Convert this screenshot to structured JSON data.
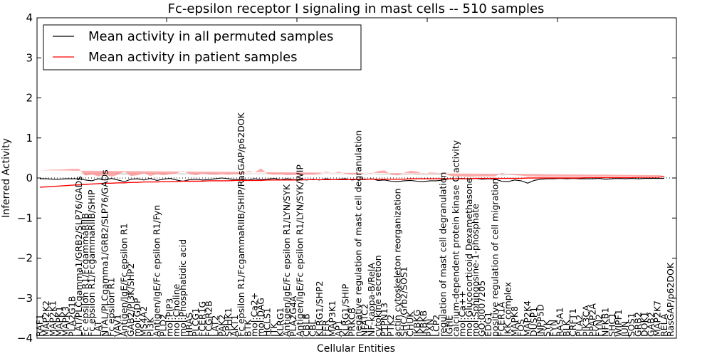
{
  "chart_data": {
    "type": "line",
    "title": "Fc-epsilon receptor I signaling in mast cells -- 510 samples",
    "xlabel": "Cellular Entities",
    "ylabel": "Inferred Activity",
    "ylim": [
      -4,
      4
    ],
    "yticks": [
      -4,
      -3,
      -2,
      -1,
      0,
      1,
      2,
      3,
      4
    ],
    "ytick_labels": [
      "−4",
      "−3",
      "−2",
      "−1",
      "0",
      "1",
      "2",
      "3",
      "4"
    ],
    "grid": false,
    "legend_position": "top-left",
    "legend": [
      {
        "label": "Mean activity in all permuted samples",
        "color": "#000000"
      },
      {
        "label": "Mean activity in patient samples",
        "color": "#ff0000"
      }
    ],
    "categories": [
      "RAF1",
      "MAP2K2",
      "MAP2K1",
      "MAPK1",
      "MAPK3",
      "PLA2G1B",
      "LAT/PLCgamma1/GRB2/SLP76/GADs",
      "Fc epsilon R1/FcgammaRIIB",
      "Fc epsilon R1/FcgammaRIIB/SHIP",
      "LAT",
      "NTAL/PLCgamma1/GRB2/SLP76/GADs",
      "Fc epsilon R1",
      "VAV1",
      "Antigen/IgE/Fc epsilon R1",
      "GAB2/PI3K/SHP2",
      "mol:GDP",
      "MS4A2",
      "PI3K",
      "Antigen/IgE/Fc epsilon R1/Fyn",
      "PLD2",
      "mol:PIP3",
      "mol:Choline",
      "mol:Phosphatidic acid",
      "HRAS",
      "PLCG1",
      "FCER1G",
      "FCGR2B",
      "LAT2",
      "PAK2",
      "SPHK1",
      "AKT1",
      "Fc epsilon R1/FcgammaRIIB/SHIP/RasGAP/p62DOK",
      "BTK",
      "mol:Ca2+",
      "mol:DAG",
      "HCLS1",
      "ITK",
      "KLRG1",
      "Antigen/IgE/Fc epsilon R1/LYN/SYK",
      "PLA2G4A",
      "Antigen/IgE/Fc epsilon R1/LYN/SYK/WIP",
      "CBLB",
      "CBL",
      "KLRG1/SHP2",
      "FER",
      "MAP3K1",
      "AP1",
      "KLRG1/SHIP",
      "PRKCB",
      "negative regulation of mast cell degranulation",
      "NFATC2",
      "NF-kappa-B/RelA",
      "cytokine secretion",
      "PTPN13",
      "PTK2",
      "actin cytoskeleton reorganization",
      "SHC/Grb2/SOS1",
      "CHUK",
      "IKBKG",
      "IKBKB",
      "PXN",
      "LCP2",
      "regulation of mast cell degranulation",
      "IGHE",
      "calcium-dependent protein kinase C activity",
      "mol:Ca++",
      "mol:Glucocorticoid Dexamethasone",
      "mol:Sphingosine-1-phosphate",
      "GO:0007205",
      "EDG1",
      "positive regulation of cell migration",
      "FCER1A",
      "IKK complex",
      "MAPK8",
      "FOS",
      "MAP2K4",
      "DUSP1",
      "INPP5D",
      "SYK",
      "FYN",
      "RASA1",
      "BLK",
      "CRFT1",
      "PLA2",
      "PIK3CA",
      "PPAP2A",
      "FYN2",
      "NFKB1",
      "SHC1",
      "WIPF1",
      "JUN",
      "SOS1",
      "GRB2",
      "DOK1",
      "GAB2",
      "MAP2K7",
      "RELA",
      "RasGAP/p62DOK"
    ],
    "series": [
      {
        "name": "Mean activity in all permuted samples",
        "color": "#000000",
        "style": "solid",
        "values": [
          -0.02,
          -0.02,
          -0.03,
          -0.03,
          -0.02,
          -0.02,
          -0.02,
          -0.05,
          -0.07,
          -0.02,
          -0.05,
          -0.01,
          -0.05,
          -0.09,
          -0.03,
          -0.02,
          -0.05,
          -0.01,
          -0.06,
          -0.03,
          -0.01,
          -0.05,
          -0.08,
          -0.04,
          -0.03,
          -0.05,
          -0.04,
          -0.02,
          0.0,
          -0.02,
          -0.04,
          -0.03,
          -0.05,
          -0.02,
          -0.04,
          -0.03,
          -0.01,
          -0.04,
          -0.02,
          -0.04,
          -0.03,
          -0.05,
          -0.03,
          -0.05,
          -0.02,
          -0.04,
          -0.03,
          -0.02,
          -0.05,
          -0.03,
          -0.04,
          -0.02,
          -0.06,
          -0.05,
          -0.08,
          -0.09,
          -0.07,
          -0.06,
          -0.08,
          -0.09,
          -0.07,
          -0.07,
          -0.05,
          -0.02,
          -0.02,
          -0.01,
          -0.03,
          -0.01,
          -0.03,
          -0.02,
          -0.03,
          -0.08,
          -0.09,
          -0.05,
          -0.07,
          -0.13,
          -0.06,
          -0.03,
          -0.02,
          -0.02,
          -0.01,
          -0.02,
          -0.01,
          -0.02,
          -0.02,
          -0.02,
          -0.01,
          -0.03,
          -0.02,
          -0.01,
          -0.02,
          -0.01,
          -0.02,
          -0.01,
          -0.01,
          -0.01,
          -0.01
        ]
      },
      {
        "name": "Mean activity in patient samples",
        "color": "#ff0000",
        "style": "solid",
        "values": [
          -0.23,
          -0.22,
          -0.21,
          -0.2,
          -0.19,
          -0.18,
          -0.17,
          -0.16,
          -0.15,
          -0.14,
          -0.13,
          -0.13,
          -0.12,
          -0.12,
          -0.11,
          -0.11,
          -0.1,
          -0.1,
          -0.1,
          -0.09,
          -0.09,
          -0.09,
          -0.08,
          -0.08,
          -0.08,
          -0.08,
          -0.07,
          -0.07,
          -0.07,
          -0.07,
          -0.06,
          -0.06,
          -0.06,
          -0.06,
          -0.06,
          -0.05,
          -0.05,
          -0.05,
          -0.05,
          -0.05,
          -0.05,
          -0.04,
          -0.04,
          -0.04,
          -0.04,
          -0.04,
          -0.04,
          -0.04,
          -0.03,
          -0.03,
          -0.03,
          -0.03,
          -0.03,
          -0.03,
          -0.03,
          -0.03,
          -0.03,
          -0.02,
          -0.02,
          -0.02,
          -0.02,
          -0.02,
          -0.02,
          -0.02,
          -0.02,
          -0.02,
          -0.02,
          -0.01,
          -0.01,
          -0.01,
          -0.01,
          -0.01,
          -0.01,
          -0.01,
          -0.01,
          0.0,
          0.0,
          0.0,
          0.0,
          0.0,
          0.0,
          0.0,
          0.0,
          0.0,
          0.01,
          0.01,
          0.01,
          0.01,
          0.01,
          0.01,
          0.01,
          0.01,
          0.02,
          0.02,
          0.02,
          0.02,
          0.04
        ]
      }
    ],
    "bands": [
      {
        "name": "Permuted samples spread",
        "color": "#c8c8c8",
        "halfwidth": [
          0.15,
          0.15,
          0.15,
          0.15,
          0.15,
          0.15,
          0.15,
          0.12,
          0.15,
          0.12,
          0.15,
          0.12,
          0.14,
          0.16,
          0.12,
          0.12,
          0.14,
          0.12,
          0.14,
          0.12,
          0.13,
          0.14,
          0.16,
          0.13,
          0.12,
          0.14,
          0.12,
          0.12,
          0.13,
          0.12,
          0.13,
          0.12,
          0.14,
          0.12,
          0.13,
          0.12,
          0.12,
          0.13,
          0.12,
          0.13,
          0.12,
          0.13,
          0.12,
          0.13,
          0.12,
          0.13,
          0.12,
          0.12,
          0.13,
          0.12,
          0.12,
          0.12,
          0.14,
          0.13,
          0.15,
          0.16,
          0.14,
          0.14,
          0.15,
          0.16,
          0.14,
          0.14,
          0.13,
          0.12,
          0.12,
          0.12,
          0.12,
          0.12,
          0.12,
          0.12,
          0.12,
          0.14,
          0.16,
          0.13,
          0.15,
          0.22,
          0.14,
          0.12,
          0.12,
          0.12,
          0.11,
          0.12,
          0.11,
          0.12,
          0.12,
          0.12,
          0.11,
          0.12,
          0.12,
          0.11,
          0.12,
          0.11,
          0.12,
          0.11,
          0.11,
          0.11,
          0.11
        ]
      },
      {
        "name": "Patient samples spread",
        "color": "#ff6666",
        "halfwidth": [
          0.42,
          0.42,
          0.42,
          0.41,
          0.41,
          0.41,
          0.4,
          0.22,
          0.24,
          0.18,
          0.22,
          0.16,
          0.2,
          0.28,
          0.16,
          0.18,
          0.22,
          0.15,
          0.2,
          0.16,
          0.18,
          0.2,
          0.26,
          0.18,
          0.15,
          0.19,
          0.16,
          0.15,
          0.16,
          0.15,
          0.16,
          0.14,
          0.24,
          0.2,
          0.3,
          0.15,
          0.13,
          0.14,
          0.12,
          0.13,
          0.12,
          0.13,
          0.12,
          0.15,
          0.2,
          0.16,
          0.2,
          0.14,
          0.12,
          0.12,
          0.16,
          0.14,
          0.2,
          0.22,
          0.12,
          0.1,
          0.16,
          0.2,
          0.18,
          0.12,
          0.16,
          0.15,
          0.14,
          0.08,
          0.06,
          0.06,
          0.05,
          0.05,
          0.05,
          0.05,
          0.05,
          0.14,
          0.1,
          0.08,
          0.07,
          0.04,
          0.04,
          0.03,
          0.03,
          0.03,
          0.03,
          0.03,
          0.03,
          0.03,
          0.03,
          0.03,
          0.03,
          0.03,
          0.03,
          0.03,
          0.03,
          0.03,
          0.03,
          0.03,
          0.03,
          0.03,
          0.03
        ]
      }
    ],
    "reference_line": {
      "y": 0,
      "style": "dotted",
      "color": "#000000"
    }
  }
}
